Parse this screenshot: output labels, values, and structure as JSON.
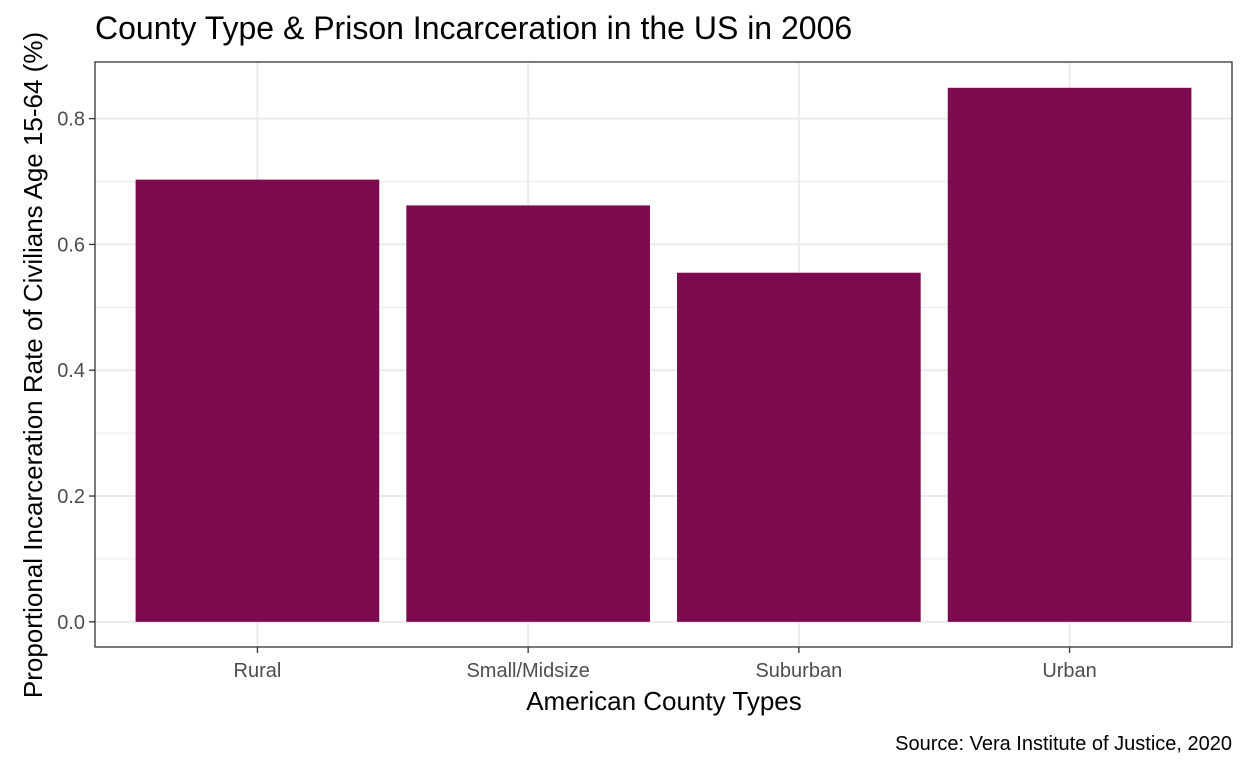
{
  "chart_data": {
    "type": "bar",
    "title": "County Type & Prison Incarceration in the US in 2006",
    "xlabel": "American County Types",
    "ylabel": "Proportional Incarceration Rate of Civilians Age 15-64 (%)",
    "caption": "Source: Vera Institute of Justice, 2020",
    "categories": [
      "Rural",
      "Small/Midsize",
      "Suburban",
      "Urban"
    ],
    "values": [
      0.703,
      0.662,
      0.555,
      0.849
    ],
    "ylim": [
      -0.04,
      0.89
    ],
    "yticks": [
      0.0,
      0.2,
      0.4,
      0.6,
      0.8
    ],
    "ytick_labels": [
      "0.0",
      "0.2",
      "0.4",
      "0.6",
      "0.8"
    ],
    "bar_color": "#7b0a4e",
    "grid": true,
    "legend": "none"
  }
}
